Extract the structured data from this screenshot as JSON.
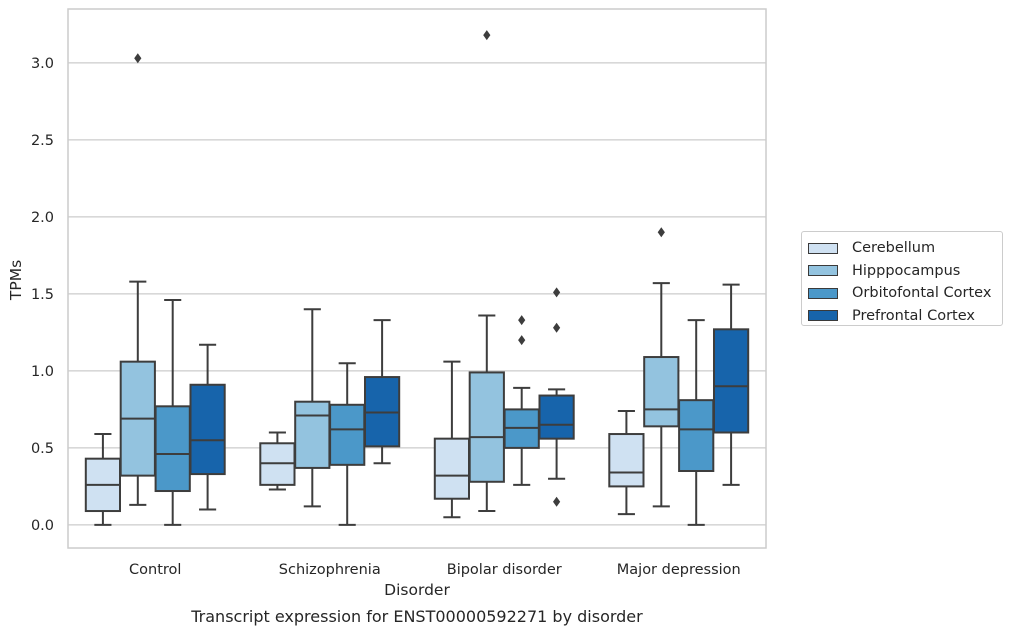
{
  "chart_data": {
    "type": "box",
    "title": "Transcript expression for ENST00000592271 by disorder",
    "xlabel": "Disorder",
    "ylabel": "TPMs",
    "ylim": [
      -0.15,
      3.35
    ],
    "yticks": [
      0.0,
      0.5,
      1.0,
      1.5,
      2.0,
      2.5,
      3.0
    ],
    "ytick_labels": [
      "0.0",
      "0.5",
      "1.0",
      "1.5",
      "2.0",
      "2.5",
      "3.0"
    ],
    "grid": "horizontal",
    "legend_position": "right",
    "categories": [
      "Control",
      "Schizophrenia",
      "Bipolar disorder",
      "Major depression"
    ],
    "series": [
      {
        "name": "Cerebellum",
        "color": "#cfe1f2",
        "boxes": [
          {
            "whislo": 0.0,
            "q1": 0.09,
            "med": 0.26,
            "q3": 0.43,
            "whishi": 0.59,
            "fliers": []
          },
          {
            "whislo": 0.23,
            "q1": 0.26,
            "med": 0.4,
            "q3": 0.53,
            "whishi": 0.6,
            "fliers": []
          },
          {
            "whislo": 0.05,
            "q1": 0.17,
            "med": 0.32,
            "q3": 0.56,
            "whishi": 1.06,
            "fliers": []
          },
          {
            "whislo": 0.07,
            "q1": 0.25,
            "med": 0.34,
            "q3": 0.59,
            "whishi": 0.74,
            "fliers": []
          }
        ]
      },
      {
        "name": "Hipppocampus",
        "color": "#93c3df",
        "boxes": [
          {
            "whislo": 0.13,
            "q1": 0.32,
            "med": 0.69,
            "q3": 1.06,
            "whishi": 1.58,
            "fliers": [
              3.03
            ]
          },
          {
            "whislo": 0.12,
            "q1": 0.37,
            "med": 0.71,
            "q3": 0.8,
            "whishi": 1.4,
            "fliers": []
          },
          {
            "whislo": 0.09,
            "q1": 0.28,
            "med": 0.57,
            "q3": 0.99,
            "whishi": 1.36,
            "fliers": [
              3.18
            ]
          },
          {
            "whislo": 0.12,
            "q1": 0.64,
            "med": 0.75,
            "q3": 1.09,
            "whishi": 1.57,
            "fliers": [
              1.9
            ]
          }
        ]
      },
      {
        "name": "Orbitofontal Cortex",
        "color": "#4b98c9",
        "boxes": [
          {
            "whislo": 0.0,
            "q1": 0.22,
            "med": 0.46,
            "q3": 0.77,
            "whishi": 1.46,
            "fliers": []
          },
          {
            "whislo": 0.0,
            "q1": 0.39,
            "med": 0.62,
            "q3": 0.78,
            "whishi": 1.05,
            "fliers": []
          },
          {
            "whislo": 0.26,
            "q1": 0.5,
            "med": 0.63,
            "q3": 0.75,
            "whishi": 0.89,
            "fliers": [
              1.2,
              1.33
            ]
          },
          {
            "whislo": 0.0,
            "q1": 0.35,
            "med": 0.62,
            "q3": 0.81,
            "whishi": 1.33,
            "fliers": []
          }
        ]
      },
      {
        "name": "Prefrontal Cortex",
        "color": "#1764ab",
        "boxes": [
          {
            "whislo": 0.1,
            "q1": 0.33,
            "med": 0.55,
            "q3": 0.91,
            "whishi": 1.17,
            "fliers": []
          },
          {
            "whislo": 0.4,
            "q1": 0.51,
            "med": 0.73,
            "q3": 0.96,
            "whishi": 1.33,
            "fliers": []
          },
          {
            "whislo": 0.3,
            "q1": 0.56,
            "med": 0.65,
            "q3": 0.84,
            "whishi": 0.88,
            "fliers": [
              0.15,
              1.28,
              1.51
            ]
          },
          {
            "whislo": 0.26,
            "q1": 0.6,
            "med": 0.9,
            "q3": 1.27,
            "whishi": 1.56,
            "fliers": []
          }
        ]
      }
    ]
  }
}
